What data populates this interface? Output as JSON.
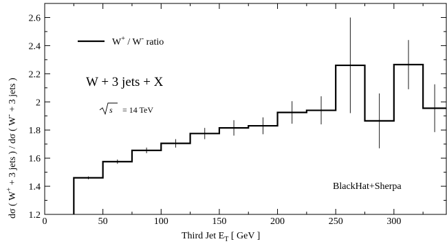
{
  "chart_data": {
    "type": "line",
    "style": "step-histogram-with-error-bars",
    "xlabel": "Third Jet E_T [ GeV ]",
    "ylabel": "dσ ( W⁺ + 3 jets ) / dσ ( W⁻ + 3 jets )",
    "xlim": [
      0,
      345
    ],
    "ylim": [
      1.2,
      2.7
    ],
    "xticks": [
      0,
      50,
      100,
      150,
      200,
      250,
      300
    ],
    "yticks": [
      1.2,
      1.4,
      1.6,
      1.8,
      2.0,
      2.2,
      2.4,
      2.6
    ],
    "xtick_labels": [
      "0",
      "50",
      "100",
      "150",
      "200",
      "250",
      "300"
    ],
    "ytick_labels": [
      "1.2",
      "1.4",
      "1.6",
      "1.8",
      "2",
      "2.2",
      "2.4",
      "2.6"
    ],
    "grid": false,
    "legend_position": "top-left",
    "series": [
      {
        "name": "W⁺ / W⁻ ratio",
        "bin_edges": [
          25,
          50,
          75,
          100,
          125,
          150,
          175,
          200,
          225,
          250,
          275,
          300,
          325,
          345
        ],
        "values": [
          1.46,
          1.575,
          1.655,
          1.705,
          1.775,
          1.815,
          1.83,
          1.925,
          1.94,
          2.26,
          1.865,
          2.265,
          1.955
        ],
        "errors": [
          0.01,
          0.015,
          0.02,
          0.03,
          0.04,
          0.055,
          0.06,
          0.08,
          0.1,
          0.34,
          0.195,
          0.175,
          0.17
        ]
      }
    ],
    "annotations": {
      "process": "W + 3 jets + X",
      "energy_sqrt": "s",
      "energy_value": "= 14 TeV",
      "credit": "BlackHat+Sherpa"
    }
  }
}
